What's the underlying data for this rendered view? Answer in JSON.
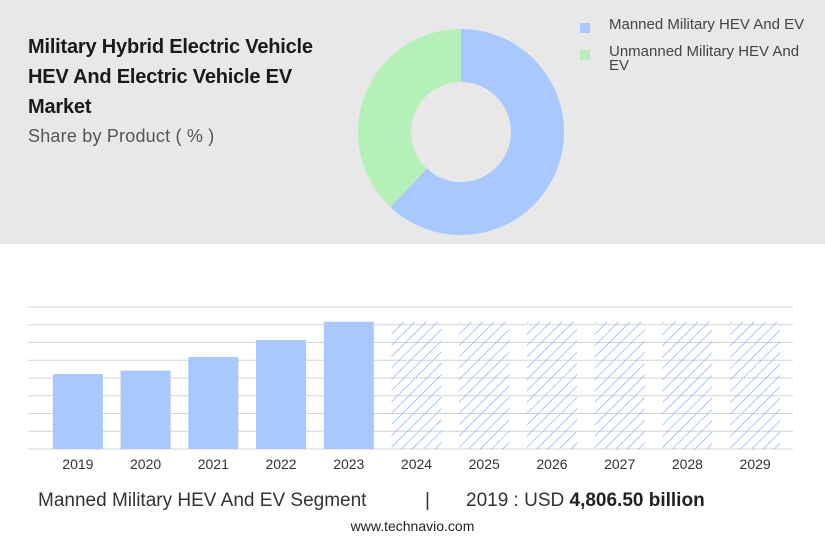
{
  "header": {
    "title": "Military Hybrid Electric Vehicle HEV And Electric Vehicle EV Market",
    "subtitle": "Share by Product ( % )"
  },
  "legend": [
    {
      "label": "Manned Military HEV And EV",
      "color": "#a9c8ff"
    },
    {
      "label": "Unmanned Military HEV And EV",
      "color": "#b4f0b8"
    }
  ],
  "chart_data": [
    {
      "type": "pie",
      "style": "donut",
      "categories": [
        "Manned Military HEV And EV",
        "Unmanned Military HEV And EV"
      ],
      "values": [
        62,
        38
      ],
      "colors": [
        "#a9c8ff",
        "#b4f0b8"
      ]
    },
    {
      "type": "bar",
      "categories": [
        "2019",
        "2020",
        "2021",
        "2022",
        "2023",
        "2024",
        "2025",
        "2026",
        "2027",
        "2028",
        "2029"
      ],
      "values": [
        66,
        69,
        81,
        96,
        112,
        112,
        112,
        112,
        112,
        112,
        112
      ],
      "forecast_from": "2024",
      "ylim": [
        0,
        125
      ],
      "grid": true,
      "bar_color": "#a9c8ff",
      "forecast_hatch_color": "#8fb5f5"
    }
  ],
  "footer": {
    "segment": "Manned Military HEV And EV Segment",
    "divider": "|",
    "year_label": "2019 : USD ",
    "value": "4,806.50 billion"
  },
  "source": "www.technavio.com"
}
